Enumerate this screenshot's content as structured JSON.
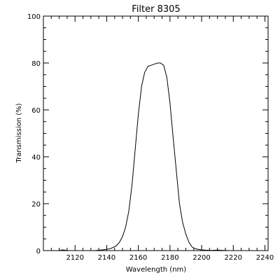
{
  "chart_data": {
    "type": "line",
    "title": "Filter 8305",
    "xlabel": "Wavelength (nm)",
    "ylabel": "Transmission (%)",
    "xlim": [
      2100,
      2242
    ],
    "ylim": [
      0,
      100
    ],
    "xticks": [
      2120,
      2140,
      2160,
      2180,
      2200,
      2220,
      2240
    ],
    "yticks": [
      0,
      20,
      40,
      60,
      80,
      100
    ],
    "grid": false,
    "line_color": "#000000",
    "series": [
      {
        "x": [
          2110,
          2112,
          2116,
          2125,
          2132,
          2136,
          2140,
          2143,
          2146,
          2148,
          2150,
          2152,
          2154,
          2156,
          2158,
          2160,
          2162,
          2164,
          2166,
          2168,
          2170,
          2172,
          2174,
          2176,
          2178,
          2180,
          2182,
          2184,
          2186,
          2188,
          2190,
          2192,
          2194,
          2196,
          2198,
          2200,
          2202,
          2206,
          2210,
          2214,
          2218
        ],
        "y": [
          0,
          0.3,
          0,
          0,
          0,
          0.2,
          0.5,
          1,
          2,
          3.5,
          6,
          10,
          17,
          28,
          43,
          58,
          70,
          76,
          78.5,
          79,
          79.5,
          80,
          80,
          79,
          74,
          63,
          48,
          34,
          20,
          12,
          7,
          3.5,
          1.5,
          0.8,
          0.5,
          0.3,
          0.2,
          0.1,
          0.2,
          0.1,
          0
        ]
      }
    ]
  }
}
